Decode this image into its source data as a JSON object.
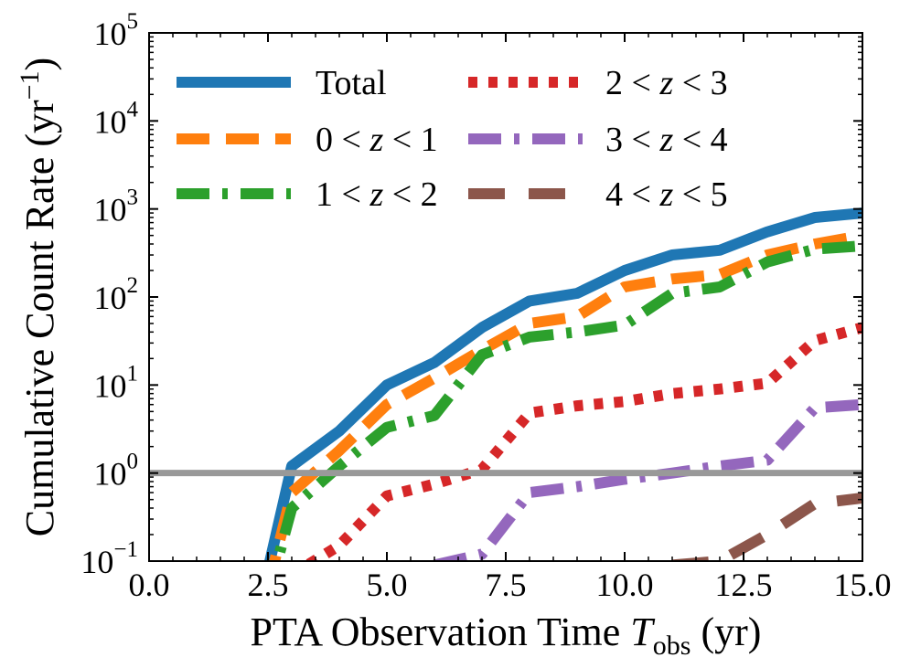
{
  "chart_data": {
    "type": "line",
    "yscale": "log",
    "xlim": [
      0.0,
      15.0
    ],
    "ylim": [
      0.1,
      100000
    ],
    "xticks": [
      0.0,
      2.5,
      5.0,
      7.5,
      10.0,
      12.5,
      15.0
    ],
    "xtick_labels": [
      "0.0",
      "2.5",
      "5.0",
      "7.5",
      "10.0",
      "12.5",
      "15.0"
    ],
    "yticks": [
      0.1,
      1,
      10,
      100,
      1000,
      10000,
      100000
    ],
    "ytick_labels": [
      {
        "base": "10",
        "exp": "−1"
      },
      {
        "base": "10",
        "exp": "0"
      },
      {
        "base": "10",
        "exp": "1"
      },
      {
        "base": "10",
        "exp": "2"
      },
      {
        "base": "10",
        "exp": "3"
      },
      {
        "base": "10",
        "exp": "4"
      },
      {
        "base": "10",
        "exp": "5"
      }
    ],
    "xlabel": {
      "prefix": "PTA Observation Time ",
      "symbol": "T",
      "sub": "obs",
      "suffix": " (yr)"
    },
    "ylabel": {
      "prefix": "Cumulative Count Rate (yr",
      "exp": "−1",
      "suffix": ")"
    },
    "reference_line": {
      "y": 1,
      "color": "#999999"
    },
    "legend_position": "upper-left",
    "series": [
      {
        "name": "Total",
        "label_parts": [
          "Total"
        ],
        "color": "#1f77b4",
        "dash": "solid",
        "x": [
          2.5,
          3,
          4,
          5,
          6,
          7,
          8,
          9,
          10,
          11,
          12,
          13,
          14,
          15
        ],
        "y": [
          0.08,
          1.2,
          3.0,
          10,
          18,
          45,
          90,
          110,
          200,
          300,
          340,
          550,
          800,
          900
        ]
      },
      {
        "name": "0<z<1",
        "label_parts": [
          "0 < ",
          "z",
          " < 1"
        ],
        "color": "#ff7f0e",
        "dash": "dashed",
        "x": [
          2.5,
          3,
          4,
          5,
          6,
          7,
          8,
          9,
          10,
          11,
          12,
          13,
          14,
          15
        ],
        "y": [
          0.05,
          0.6,
          1.8,
          6,
          12,
          25,
          50,
          60,
          130,
          160,
          180,
          300,
          400,
          500
        ]
      },
      {
        "name": "1<z<2",
        "label_parts": [
          "1 < ",
          "z",
          " < 2"
        ],
        "color": "#2ca02c",
        "dash": "dashdot",
        "x": [
          2.5,
          3,
          4,
          5,
          6,
          7,
          8,
          9,
          10,
          11,
          12,
          13,
          14,
          15
        ],
        "y": [
          0.04,
          0.4,
          1.2,
          3.3,
          4.5,
          22,
          35,
          40,
          48,
          110,
          130,
          250,
          350,
          380
        ]
      },
      {
        "name": "2<z<3",
        "label_parts": [
          "2 < ",
          "z",
          " < 3"
        ],
        "color": "#d62728",
        "dash": "dotted",
        "x": [
          3,
          4,
          5,
          6,
          7,
          8,
          9,
          10,
          11,
          12,
          13,
          14,
          15
        ],
        "y": [
          0.07,
          0.15,
          0.55,
          0.75,
          1.1,
          4.8,
          5.8,
          6.5,
          8.0,
          9.0,
          10.5,
          32,
          45
        ]
      },
      {
        "name": "3<z<4",
        "label_parts": [
          "3 < ",
          "z",
          " < 4"
        ],
        "color": "#9467bd",
        "dash": "dashdot",
        "x": [
          6,
          7,
          8,
          9,
          10,
          11,
          12,
          13,
          14,
          15
        ],
        "y": [
          0.09,
          0.12,
          0.6,
          0.7,
          0.85,
          1.0,
          1.2,
          1.4,
          5.5,
          6.0
        ]
      },
      {
        "name": "4<z<5",
        "label_parts": [
          "4 < ",
          "z",
          " < 5"
        ],
        "color": "#8c564b",
        "dash": "longdash",
        "x": [
          11,
          12,
          13,
          14,
          15
        ],
        "y": [
          0.09,
          0.1,
          0.2,
          0.45,
          0.52
        ]
      }
    ]
  }
}
